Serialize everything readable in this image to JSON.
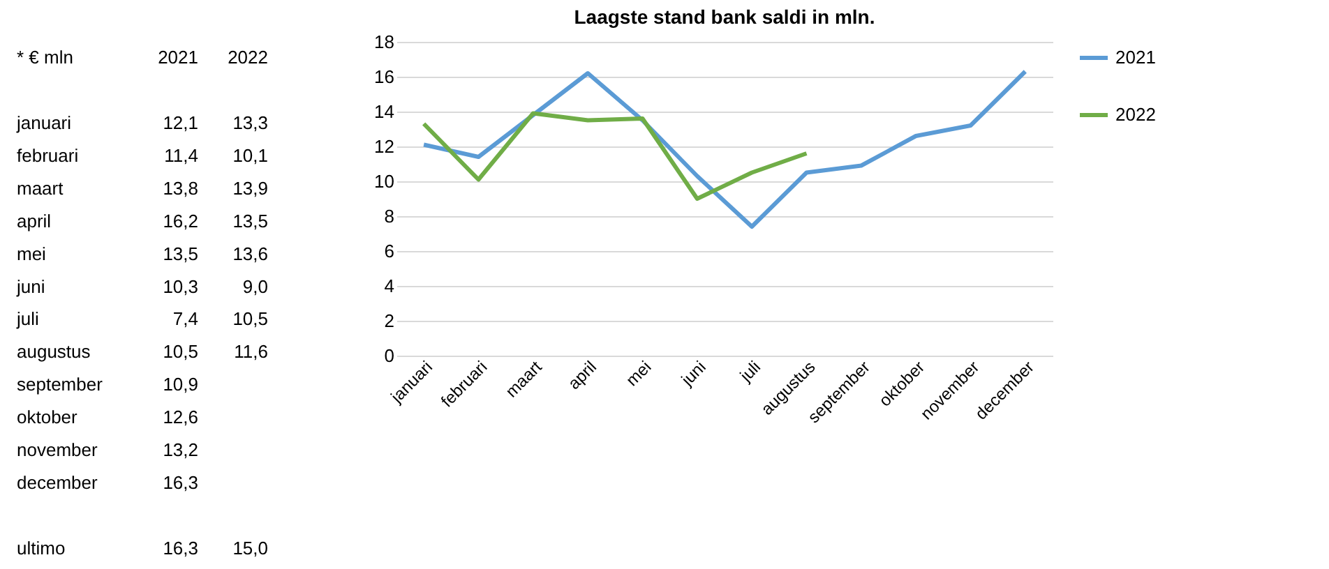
{
  "chart_data": [
    {
      "type": "other",
      "annotations": [
        "* € mln\t2021\t2022",
        "januari\t12,1\t13,3",
        "februari\t11,4\t10,1",
        "maart\t13,8\t13,9",
        "april\t16,2\t13,5",
        "mei\t13,5\t13,6",
        "juni\t10,3\t9,0",
        "juli\t7,4\t10,5",
        "augustus\t10,5\t11,6",
        "september\t10,9",
        "oktober\t12,6",
        "november\t13,2",
        "december\t16,3",
        "ultimo\t16,3\t15,0"
      ]
    },
    {
      "type": "line",
      "title": "Laagste stand bank saldi in mln.",
      "categories": [
        "januari",
        "februari",
        "maart",
        "april",
        "mei",
        "juni",
        "juli",
        "augustus",
        "september",
        "oktober",
        "november",
        "december"
      ],
      "series": [
        {
          "name": "2021",
          "color": "#5b9bd5",
          "values": [
            12.1,
            11.4,
            13.8,
            16.2,
            13.5,
            10.3,
            7.4,
            10.5,
            10.9,
            12.6,
            13.2,
            16.3
          ]
        },
        {
          "name": "2022",
          "color": "#70ad47",
          "values": [
            13.3,
            10.1,
            13.9,
            13.5,
            13.6,
            9.0,
            10.5,
            11.6,
            null,
            null,
            null,
            null
          ]
        }
      ],
      "ylim": [
        0,
        18
      ],
      "yticks": [
        0,
        2,
        4,
        6,
        8,
        10,
        12,
        14,
        16,
        18
      ],
      "grid": "y",
      "legend": "right",
      "marker": "none",
      "line_style": "solid"
    }
  ]
}
